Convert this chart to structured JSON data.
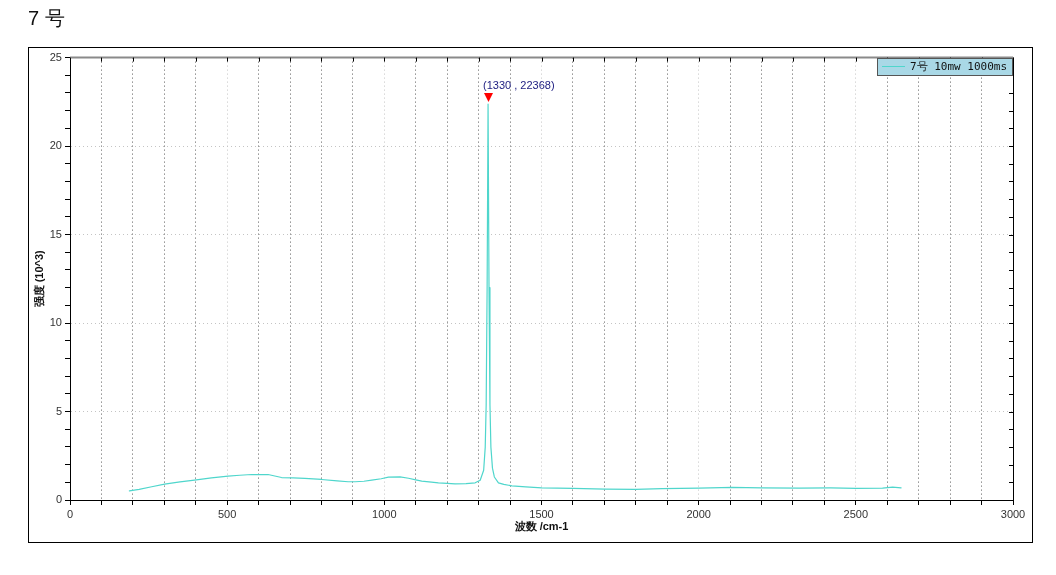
{
  "chart_data": {
    "type": "line",
    "title": "7 号",
    "xlabel": "波数 /cm-1",
    "ylabel": "强度 (10^3)",
    "xlim": [
      0,
      3000
    ],
    "ylim": [
      0,
      25
    ],
    "xticks": [
      0,
      {
        "value": 100,
        "label": null
      },
      {
        "value": 200,
        "label": null
      },
      {
        "value": 300,
        "label": null
      },
      {
        "value": 400,
        "label": null
      },
      500,
      {
        "value": 600,
        "label": null
      },
      {
        "value": 700,
        "label": null
      },
      {
        "value": 800,
        "label": null
      },
      {
        "value": 900,
        "label": null
      },
      1000,
      {
        "value": 1100,
        "label": null
      },
      {
        "value": 1200,
        "label": null
      },
      {
        "value": 1300,
        "label": null
      },
      {
        "value": 1400,
        "label": null
      },
      1500,
      {
        "value": 1600,
        "label": null
      },
      {
        "value": 1700,
        "label": null
      },
      {
        "value": 1800,
        "label": null
      },
      {
        "value": 1900,
        "label": null
      },
      2000,
      {
        "value": 2100,
        "label": null
      },
      {
        "value": 2200,
        "label": null
      },
      {
        "value": 2300,
        "label": null
      },
      {
        "value": 2400,
        "label": null
      },
      2500,
      {
        "value": 2600,
        "label": null
      },
      {
        "value": 2700,
        "label": null
      },
      {
        "value": 2800,
        "label": null
      },
      {
        "value": 2900,
        "label": null
      },
      3000
    ],
    "yticks": [
      0,
      {
        "value": 1,
        "label": null
      },
      {
        "value": 2,
        "label": null
      },
      {
        "value": 3,
        "label": null
      },
      {
        "value": 4,
        "label": null
      },
      5,
      {
        "value": 6,
        "label": null
      },
      {
        "value": 7,
        "label": null
      },
      {
        "value": 8,
        "label": null
      },
      {
        "value": 9,
        "label": null
      },
      10,
      {
        "value": 11,
        "label": null
      },
      {
        "value": 12,
        "label": null
      },
      {
        "value": 13,
        "label": null
      },
      {
        "value": 14,
        "label": null
      },
      15,
      {
        "value": 16,
        "label": null
      },
      {
        "value": 17,
        "label": null
      },
      {
        "value": 18,
        "label": null
      },
      {
        "value": 19,
        "label": null
      },
      20,
      {
        "value": 21,
        "label": null
      },
      {
        "value": 22,
        "label": null
      },
      {
        "value": 23,
        "label": null
      },
      {
        "value": 24,
        "label": null
      },
      25
    ],
    "series": [
      {
        "name": "7号 10mw 1000ms",
        "color": "#4fd6cc",
        "x": [
          189,
          220,
          260,
          301,
          350,
          396,
          450,
          503,
          540,
          578,
          610,
          630,
          673,
          710,
          747,
          800,
          850,
          885,
          907,
          935,
          960,
          990,
          1013,
          1050,
          1077,
          1100,
          1119,
          1150,
          1172,
          1200,
          1225,
          1260,
          1289,
          1305,
          1316,
          1321,
          1324,
          1327,
          1330,
          1333,
          1336,
          1339,
          1344,
          1350,
          1363,
          1380,
          1406,
          1450,
          1501,
          1600,
          1703,
          1799,
          1884,
          2001,
          2107,
          2200,
          2320,
          2420,
          2500,
          2585,
          2617,
          2644
        ],
        "values": [
          0.52,
          0.6,
          0.75,
          0.9,
          1.02,
          1.12,
          1.25,
          1.35,
          1.4,
          1.44,
          1.43,
          1.44,
          1.27,
          1.25,
          1.22,
          1.16,
          1.08,
          1.03,
          1.03,
          1.06,
          1.12,
          1.2,
          1.29,
          1.31,
          1.23,
          1.14,
          1.07,
          1.01,
          0.97,
          0.94,
          0.91,
          0.92,
          0.97,
          1.12,
          1.68,
          2.99,
          5.4,
          12,
          22.368,
          12,
          5.4,
          2.99,
          1.8,
          1.3,
          0.97,
          0.88,
          0.8,
          0.74,
          0.69,
          0.66,
          0.62,
          0.6,
          0.64,
          0.67,
          0.71,
          0.69,
          0.67,
          0.68,
          0.66,
          0.67,
          0.73,
          0.69
        ]
      }
    ],
    "annotations": [
      {
        "text": "(1330 , 22368)",
        "x": 1330,
        "y": 22.368
      }
    ],
    "grid": true,
    "legend": "top right",
    "marker": "none",
    "line_style": "solid"
  }
}
